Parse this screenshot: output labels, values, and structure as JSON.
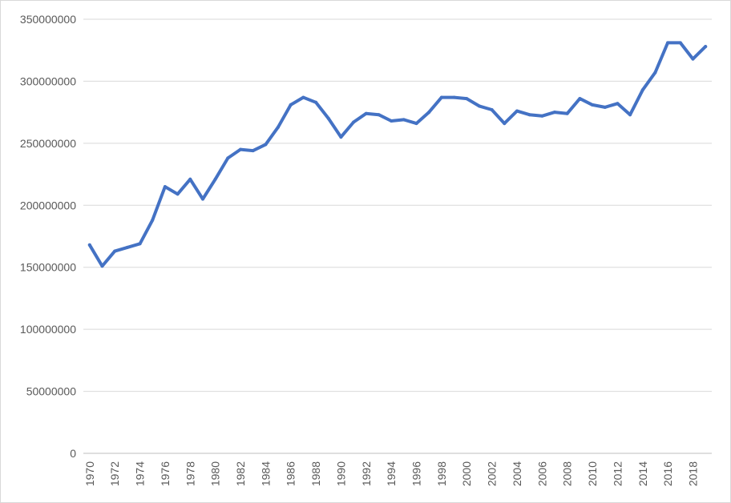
{
  "chart_data": {
    "type": "line",
    "title": "",
    "xlabel": "",
    "ylabel": "",
    "ylim": [
      0,
      350000000
    ],
    "y_ticks": [
      "0",
      "50000000",
      "100000000",
      "150000000",
      "200000000",
      "250000000",
      "300000000",
      "350000000"
    ],
    "x_tick_labels": [
      "1970",
      "1972",
      "1974",
      "1976",
      "1978",
      "1980",
      "1982",
      "1984",
      "1986",
      "1988",
      "1990",
      "1992",
      "1994",
      "1996",
      "1998",
      "2000",
      "2002",
      "2004",
      "2006",
      "2008",
      "2010",
      "2012",
      "2014",
      "2016",
      "2018"
    ],
    "grid": true,
    "legend": "none",
    "x": [
      1970,
      1971,
      1972,
      1973,
      1974,
      1975,
      1976,
      1977,
      1978,
      1979,
      1980,
      1981,
      1982,
      1983,
      1984,
      1985,
      1986,
      1987,
      1988,
      1989,
      1990,
      1991,
      1992,
      1993,
      1994,
      1995,
      1996,
      1997,
      1998,
      1999,
      2000,
      2001,
      2002,
      2003,
      2004,
      2005,
      2006,
      2007,
      2008,
      2009,
      2010,
      2011,
      2012,
      2013,
      2014,
      2015,
      2016,
      2017,
      2018,
      2019
    ],
    "series": [
      {
        "color": "#4472c4",
        "values": [
          168000000,
          151000000,
          163000000,
          166000000,
          169000000,
          188000000,
          215000000,
          209000000,
          221000000,
          205000000,
          221000000,
          238000000,
          245000000,
          244000000,
          249000000,
          263000000,
          281000000,
          287000000,
          283000000,
          270000000,
          255000000,
          267000000,
          274000000,
          273000000,
          268000000,
          269000000,
          266000000,
          275000000,
          287000000,
          287000000,
          286000000,
          280000000,
          277000000,
          266000000,
          276000000,
          273000000,
          272000000,
          275000000,
          274000000,
          286000000,
          281000000,
          279000000,
          282000000,
          273000000,
          293000000,
          307000000,
          331000000,
          331000000,
          318000000,
          328000000
        ]
      }
    ]
  }
}
